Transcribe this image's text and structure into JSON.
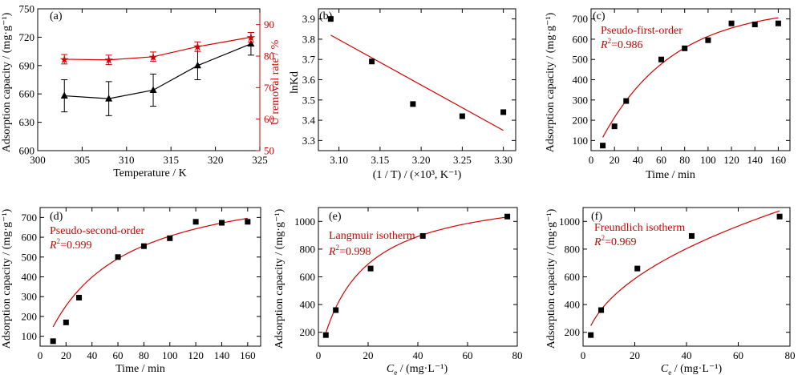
{
  "colors": {
    "black": "#000000",
    "red": "#d40000"
  },
  "chart_data": [
    {
      "panel": "(a)",
      "type": "line",
      "xlabel": "Temperature / K",
      "ylabel": "Adsorption capacity / (mg·g⁻¹)",
      "y2label": "U removal rate / %",
      "xlim": [
        300,
        325
      ],
      "ylim": [
        600,
        750
      ],
      "y2lim": [
        50,
        95
      ],
      "xticks": [
        300,
        305,
        310,
        315,
        320,
        325
      ],
      "yticks": [
        600,
        630,
        660,
        690,
        720,
        750
      ],
      "y2ticks": [
        50,
        60,
        70,
        80,
        90
      ],
      "x": [
        303,
        308,
        313,
        318,
        324
      ],
      "series": [
        {
          "values": [
            658,
            655,
            664,
            690,
            713
          ],
          "errors": [
            17,
            18,
            17,
            15,
            12
          ],
          "axis": "left",
          "marker": "triangle",
          "color": "#000000"
        },
        {
          "values": [
            79,
            78.8,
            79.8,
            83,
            86
          ],
          "errors": [
            1.5,
            1.5,
            1.5,
            1.5,
            1.5
          ],
          "axis": "right",
          "marker": "star",
          "color": "#d40000"
        }
      ]
    },
    {
      "panel": "(b)",
      "type": "scatter",
      "xlabel": "(1 / T) / (×10³, K⁻¹)",
      "ylabel": "lnKd",
      "xlim": [
        3.075,
        3.315
      ],
      "ylim": [
        3.25,
        3.95
      ],
      "xticks": [
        3.1,
        3.15,
        3.2,
        3.25,
        3.3
      ],
      "yticks": [
        3.3,
        3.4,
        3.5,
        3.6,
        3.7,
        3.8,
        3.9
      ],
      "x": [
        3.09,
        3.14,
        3.19,
        3.25,
        3.3
      ],
      "y": [
        3.9,
        3.69,
        3.48,
        3.42,
        3.44
      ],
      "fit": {
        "x": [
          3.09,
          3.3
        ],
        "y": [
          3.82,
          3.35
        ]
      }
    },
    {
      "panel": "(c)",
      "type": "scatter",
      "label": "Pseudo-first-order",
      "r2": "=0.986",
      "xlabel": "Time / min",
      "ylabel": "Adsorption capacity / (mg·g⁻¹)",
      "xlim": [
        0,
        170
      ],
      "ylim": [
        50,
        750
      ],
      "xticks": [
        0,
        20,
        40,
        60,
        80,
        100,
        120,
        140,
        160
      ],
      "yticks": [
        100,
        200,
        300,
        400,
        500,
        600,
        700
      ],
      "x": [
        10,
        20,
        30,
        60,
        80,
        100,
        120,
        140,
        160
      ],
      "y": [
        75,
        170,
        295,
        500,
        555,
        595,
        678,
        673,
        678
      ],
      "fit": {
        "model": "pfo",
        "qe": 760,
        "k": 0.0165,
        "x0": 10,
        "x1": 160
      }
    },
    {
      "panel": "(d)",
      "type": "scatter",
      "label": "Pseudo-second-order",
      "r2": "=0.999",
      "xlabel": "Time / min",
      "ylabel": "Adsorption capacity / (mg·g⁻¹)",
      "xlim": [
        0,
        170
      ],
      "ylim": [
        50,
        750
      ],
      "xticks": [
        0,
        20,
        40,
        60,
        80,
        100,
        120,
        140,
        160
      ],
      "yticks": [
        100,
        200,
        300,
        400,
        500,
        600,
        700
      ],
      "x": [
        10,
        20,
        30,
        60,
        80,
        100,
        120,
        140,
        160
      ],
      "y": [
        75,
        170,
        295,
        500,
        555,
        595,
        678,
        673,
        678
      ],
      "fit": {
        "model": "pso",
        "qe": 926,
        "k": 2.04e-05,
        "x0": 10,
        "x1": 160
      }
    },
    {
      "panel": "(e)",
      "type": "scatter",
      "label": "Langmuir isotherm",
      "r2": "=0.998",
      "xlabel": "/ (mg·L⁻¹)",
      "ylabel": "Adsorption capacity / (mg·g⁻¹)",
      "xlim": [
        0,
        80
      ],
      "ylim": [
        100,
        1100
      ],
      "xticks": [
        0,
        20,
        40,
        60,
        80
      ],
      "yticks": [
        200,
        400,
        600,
        800,
        1000
      ],
      "x": [
        3,
        7,
        21,
        42,
        76
      ],
      "y": [
        180,
        360,
        660,
        895,
        1035
      ],
      "fit": {
        "model": "langmuir",
        "qm": 1250,
        "KL": 0.062,
        "x0": 3,
        "x1": 77
      }
    },
    {
      "panel": "(f)",
      "type": "scatter",
      "label": "Freundlich isotherm",
      "r2": "=0.969",
      "xlabel": "/ (mg·L⁻¹)",
      "ylabel": "Adsorption capacity / (mg·g⁻¹)",
      "xlim": [
        0,
        80
      ],
      "ylim": [
        100,
        1100
      ],
      "xticks": [
        0,
        20,
        40,
        60,
        80
      ],
      "yticks": [
        200,
        400,
        600,
        800,
        1000
      ],
      "x": [
        3,
        7,
        21,
        42,
        76
      ],
      "y": [
        180,
        360,
        660,
        895,
        1035
      ],
      "fit": {
        "model": "freundlich",
        "KF": 150,
        "n": 0.455,
        "x0": 3,
        "x1": 76
      }
    }
  ]
}
